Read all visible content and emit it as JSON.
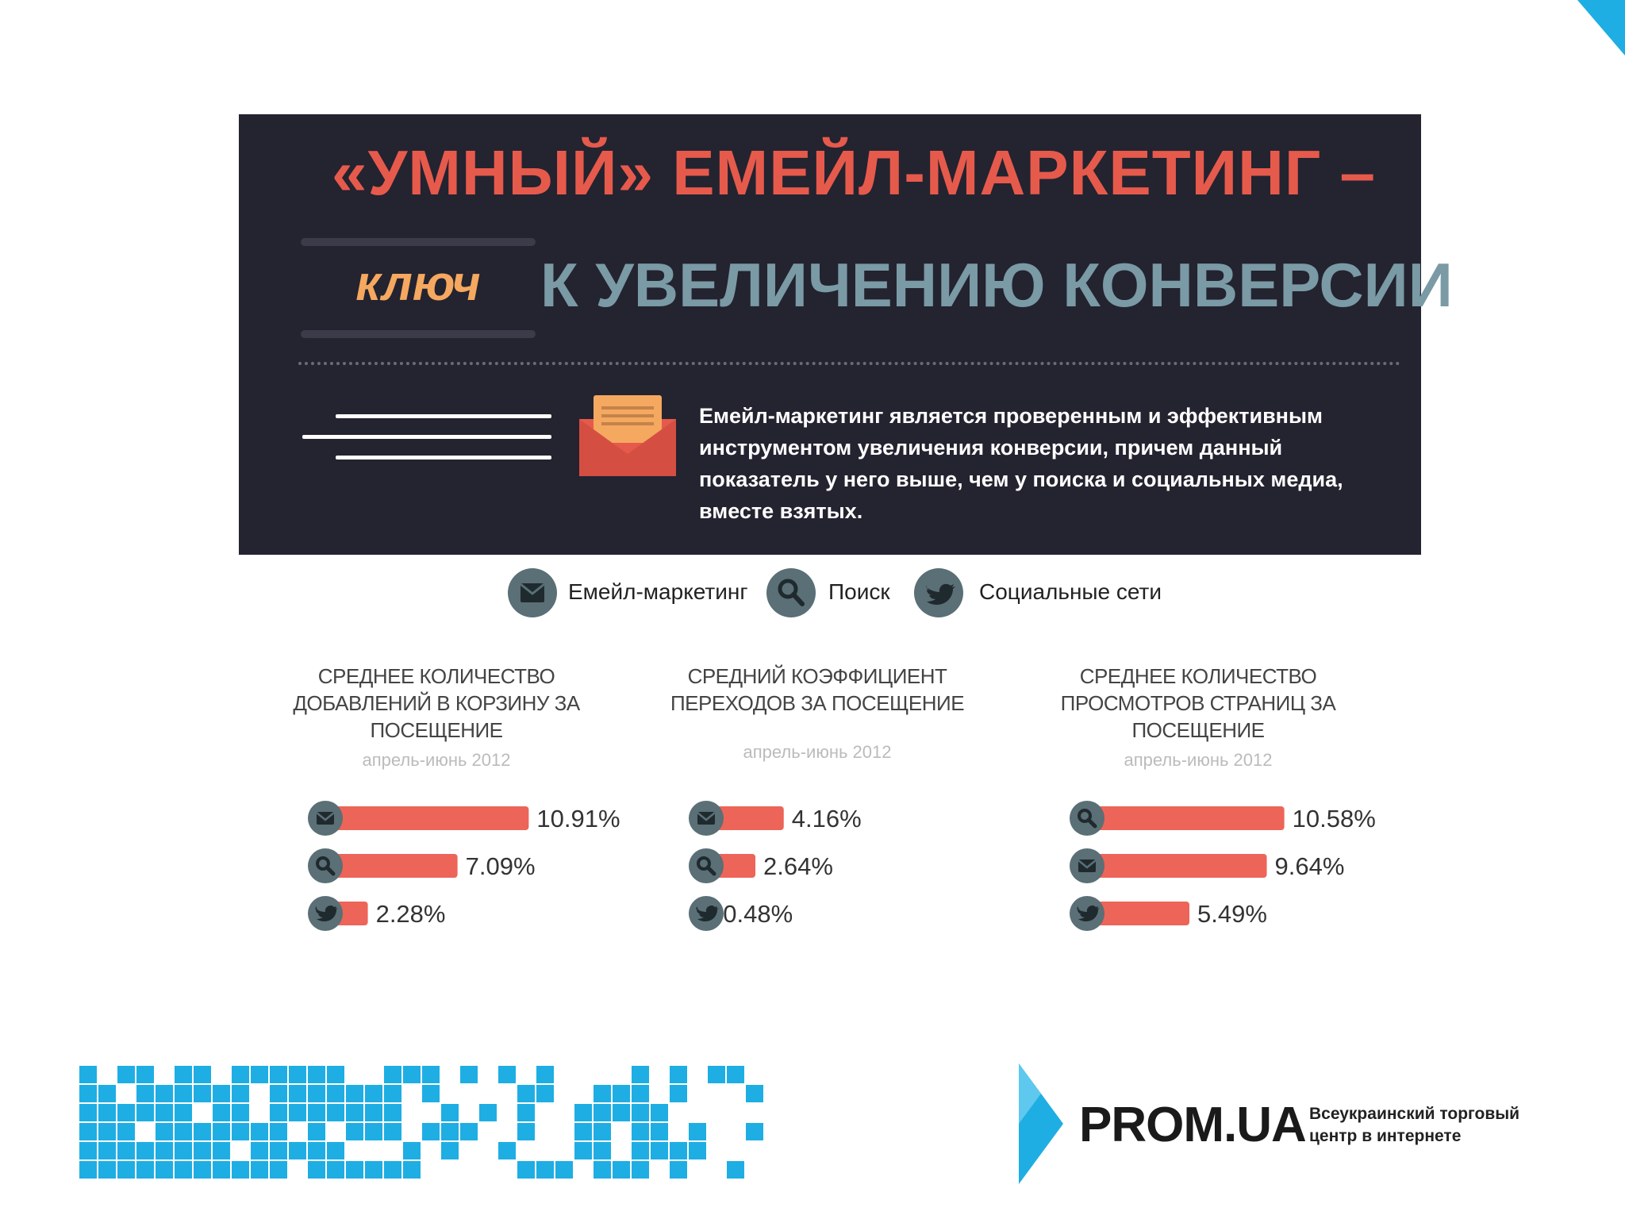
{
  "banner": {
    "title_line1": "«УМНЫЙ» ЕМЕЙЛ-МАРКЕТИНГ –",
    "key_word": "ключ",
    "title_line2": "К УВЕЛИЧЕНИЮ КОНВЕРСИИ",
    "description": "Емейл-маркетинг является проверенным и эффективным инструментом увеличения конверсии, причем данный показатель у него выше, чем у поиска и социальных медиа, вместе взятых."
  },
  "legend": [
    {
      "icon": "envelope-icon",
      "label": "Емейл-маркетинг"
    },
    {
      "icon": "magnifier-icon",
      "label": "Поиск"
    },
    {
      "icon": "twitter-bird-icon",
      "label": "Социальные сети"
    }
  ],
  "colors": {
    "bar": "#ec6558",
    "icon_bg": "#5a6f76",
    "banner_bg": "#242330",
    "title_red": "#e65a4c",
    "key_orange": "#f5a85f",
    "title_teal": "#7a9aa5",
    "accent_blue": "#1eaee3"
  },
  "chart_data": [
    {
      "type": "bar",
      "title": "СРЕДНЕЕ КОЛИЧЕСТВО ДОБАВЛЕНИЙ В КОРЗИНУ ЗА ПОСЕЩЕНИЕ",
      "subtitle": "апрель-июнь 2012",
      "categories": [
        "email",
        "search",
        "social"
      ],
      "values": [
        10.91,
        7.09,
        2.28
      ],
      "labels": [
        "10.91%",
        "7.09%",
        "2.28%"
      ]
    },
    {
      "type": "bar",
      "title": "СРЕДНИЙ КОЭФФИЦИЕНТ ПЕРЕХОДОВ ЗА ПОСЕЩЕНИЕ",
      "subtitle": "апрель-июнь 2012",
      "categories": [
        "email",
        "search",
        "social"
      ],
      "values": [
        4.16,
        2.64,
        0.48
      ],
      "labels": [
        "4.16%",
        "2.64%",
        "0.48%"
      ]
    },
    {
      "type": "bar",
      "title": "СРЕДНЕЕ КОЛИЧЕСТВО ПРОСМОТРОВ СТРАНИЦ ЗА ПОСЕЩЕНИЕ",
      "subtitle": "апрель-июнь 2012",
      "categories": [
        "search",
        "email",
        "social"
      ],
      "values": [
        10.58,
        9.64,
        5.49
      ],
      "labels": [
        "10.58%",
        "9.64%",
        "5.49%"
      ]
    }
  ],
  "footer": {
    "prom_name": "PROM.UA",
    "prom_tagline_1": "Всеукраинский торговый",
    "prom_tagline_2": "центр в интернете"
  }
}
